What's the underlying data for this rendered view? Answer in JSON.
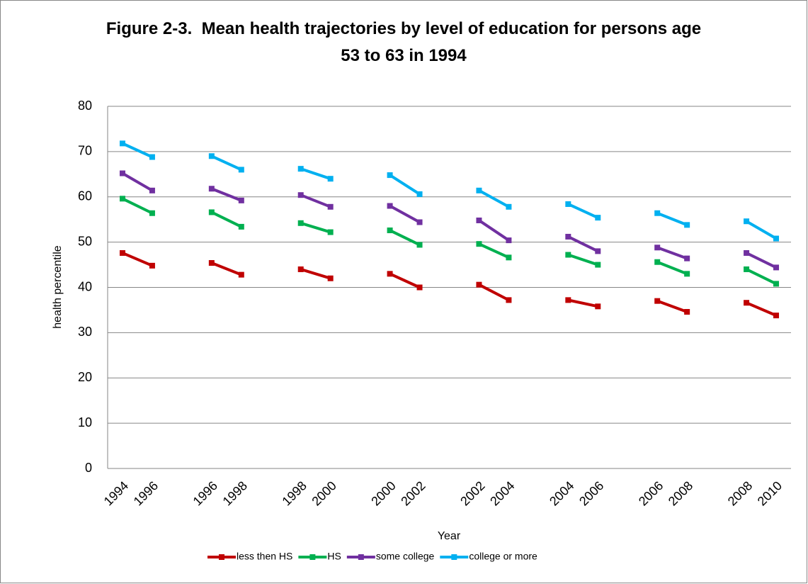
{
  "chart_data": {
    "type": "line",
    "title": "Figure 2-3.  Mean health trajectories by level of education for persons age 53 to 63 in 1994",
    "x_label": "Year",
    "y_label": "health percentile",
    "categories": [
      "1994",
      "1996",
      null,
      "1996",
      "1998",
      null,
      "1998",
      "2000",
      null,
      "2000",
      "2002",
      null,
      "2002",
      "2004",
      null,
      "2004",
      "2006",
      null,
      "2006",
      "2008",
      null,
      "2008",
      "2010"
    ],
    "series": [
      {
        "name": "less then HS",
        "color": "#c00000",
        "values": [
          47.6,
          44.8,
          null,
          45.4,
          42.8,
          null,
          44.0,
          42.0,
          null,
          43.0,
          40.0,
          null,
          40.6,
          37.2,
          null,
          37.2,
          35.8,
          null,
          37.0,
          34.6,
          null,
          36.6,
          33.8
        ]
      },
      {
        "name": "HS",
        "color": "#00b050",
        "values": [
          59.6,
          56.4,
          null,
          56.6,
          53.4,
          null,
          54.2,
          52.2,
          null,
          52.6,
          49.4,
          null,
          49.6,
          46.6,
          null,
          47.2,
          45.0,
          null,
          45.6,
          43.0,
          null,
          44.0,
          40.8
        ]
      },
      {
        "name": "some college",
        "color": "#7030a0",
        "values": [
          65.2,
          61.4,
          null,
          61.8,
          59.2,
          null,
          60.4,
          57.8,
          null,
          58.0,
          54.4,
          null,
          54.8,
          50.4,
          null,
          51.2,
          48.0,
          null,
          48.8,
          46.4,
          null,
          47.6,
          44.4
        ]
      },
      {
        "name": "college or more",
        "color": "#00b0f0",
        "values": [
          71.8,
          68.8,
          null,
          69.0,
          66.0,
          null,
          66.2,
          64.0,
          null,
          64.8,
          60.6,
          null,
          61.4,
          57.8,
          null,
          58.4,
          55.4,
          null,
          56.4,
          53.8,
          null,
          54.6,
          50.8
        ]
      }
    ],
    "ylim": [
      0,
      80
    ],
    "yticks": [
      0,
      10,
      20,
      30,
      40,
      50,
      60,
      70,
      80
    ],
    "grid": true,
    "legend": "bottom"
  }
}
